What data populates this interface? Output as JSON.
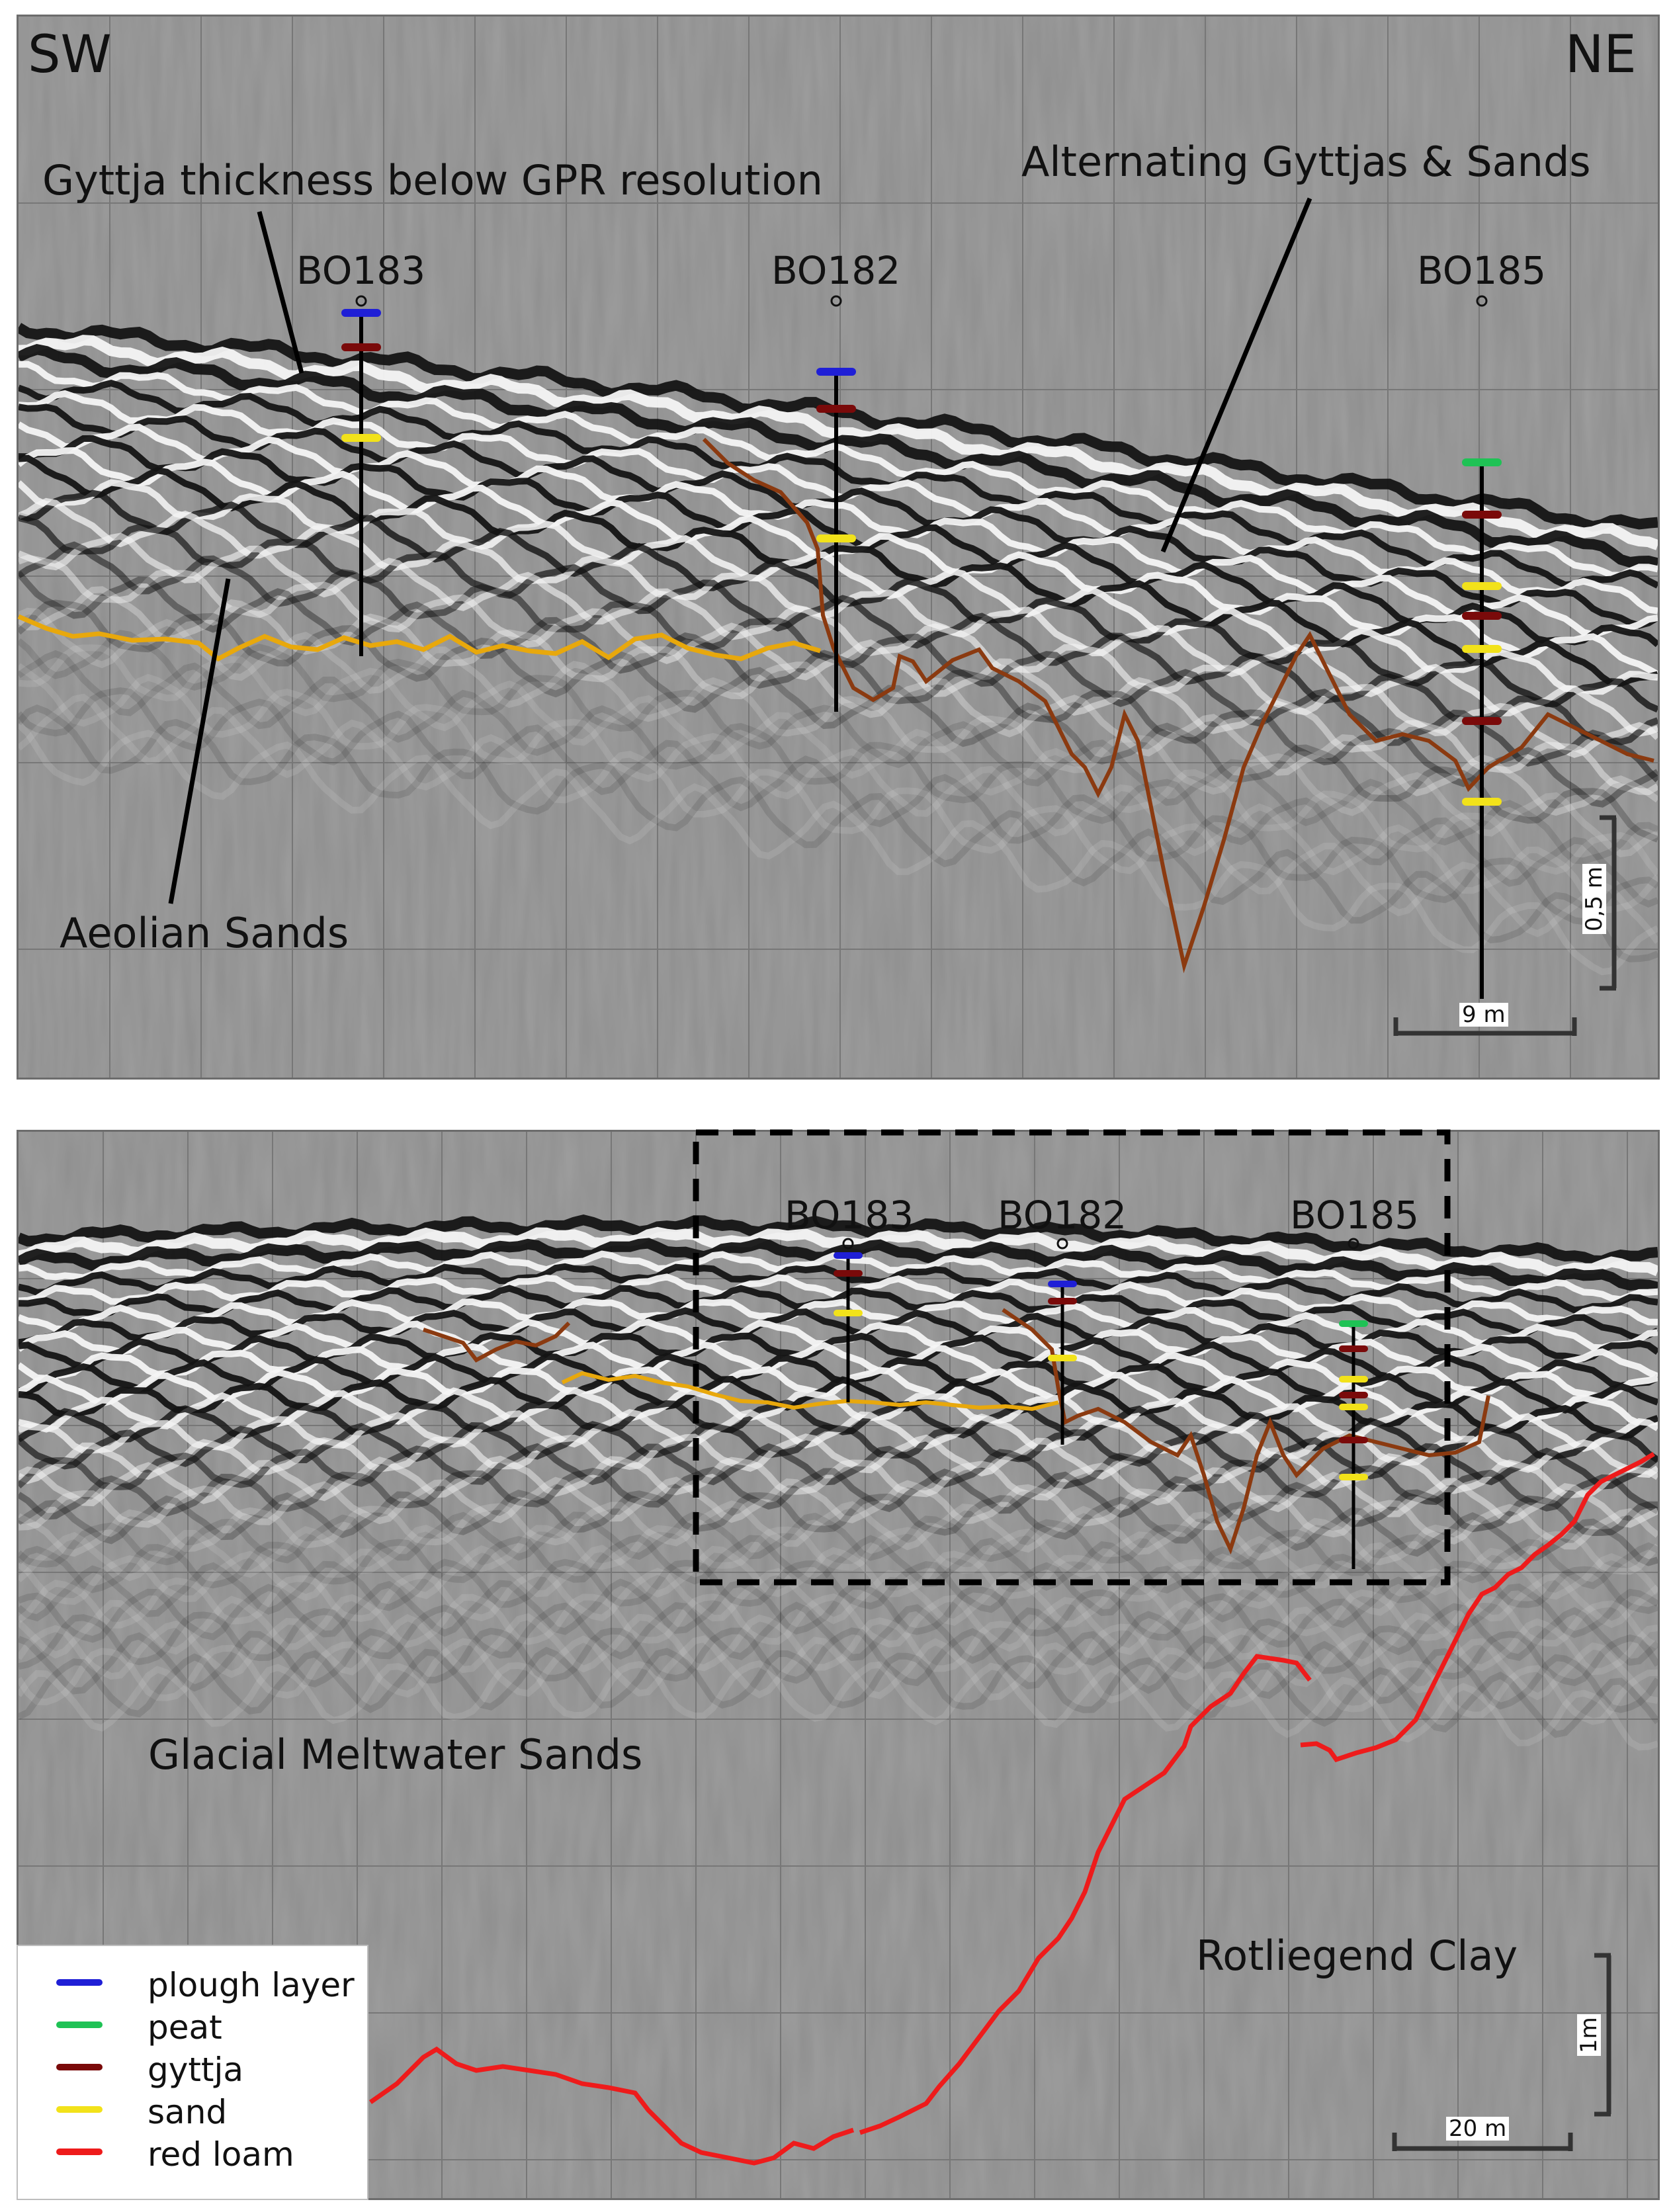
{
  "top_panel": {
    "direction_left": "SW",
    "direction_right": "NE",
    "annotations": {
      "gyttja_thin": "Gyttja thickness below GPR resolution",
      "alternating": "Alternating Gyttjas & Sands",
      "aeolian": "Aeolian Sands"
    },
    "boreholes": [
      "BO183",
      "BO182",
      "BO185"
    ],
    "scale_horizontal": "9 m",
    "scale_vertical": "0,5 m"
  },
  "bottom_panel": {
    "boreholes": [
      "BO183",
      "BO182",
      "BO185"
    ],
    "annotations": {
      "glacial": "Glacial Meltwater Sands",
      "rotliegend": "Rotliegend Clay"
    },
    "scale_horizontal": "20 m",
    "scale_vertical": "1m"
  },
  "legend": {
    "items": [
      {
        "label": "plough layer",
        "color": "#1f1fd6"
      },
      {
        "label": "peat",
        "color": "#1fc255"
      },
      {
        "label": "gyttja",
        "color": "#7a0a0a"
      },
      {
        "label": "sand",
        "color": "#f2e21a"
      },
      {
        "label": "red loam",
        "color": "#ee1b1b"
      }
    ]
  },
  "colors": {
    "radargram_background": "#8e8e8e",
    "sand_boundary_line": "#e8a80c",
    "gyttja_boundary_line": "#8b3a10",
    "red_loam_line": "#ee1b1b"
  }
}
